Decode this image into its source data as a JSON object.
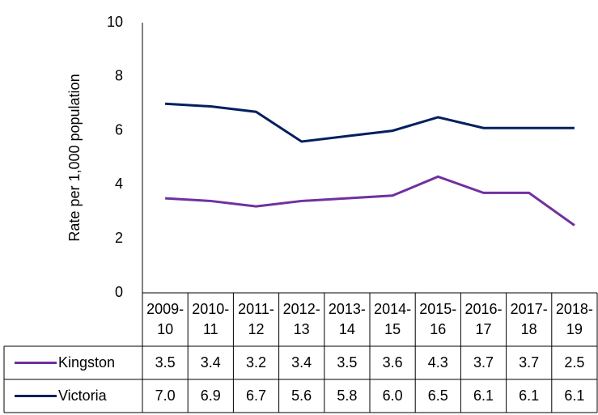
{
  "chart_data": {
    "type": "line",
    "y_label": "Rate per 1,000 population",
    "categories": [
      "2009-10",
      "2010-11",
      "2011-12",
      "2012-13",
      "2013-14",
      "2014-15",
      "2015-16",
      "2016-17",
      "2017-18",
      "2018-19"
    ],
    "series": [
      {
        "name": "Kingston",
        "color": "#7030a0",
        "values": [
          3.5,
          3.4,
          3.2,
          3.4,
          3.5,
          3.6,
          4.3,
          3.7,
          3.7,
          2.5
        ]
      },
      {
        "name": "Victoria",
        "color": "#002060",
        "values": [
          7.0,
          6.9,
          6.7,
          5.6,
          5.8,
          6.0,
          6.5,
          6.1,
          6.1,
          6.1
        ],
        "value_labels": [
          "7.0",
          "6.9",
          "6.7",
          "5.6",
          "5.8",
          "6.0",
          "6.5",
          "6.1",
          "6.1",
          "6.1"
        ]
      }
    ],
    "ylim": [
      0,
      10
    ],
    "yticks": [
      0,
      2,
      4,
      6,
      8,
      10
    ]
  }
}
